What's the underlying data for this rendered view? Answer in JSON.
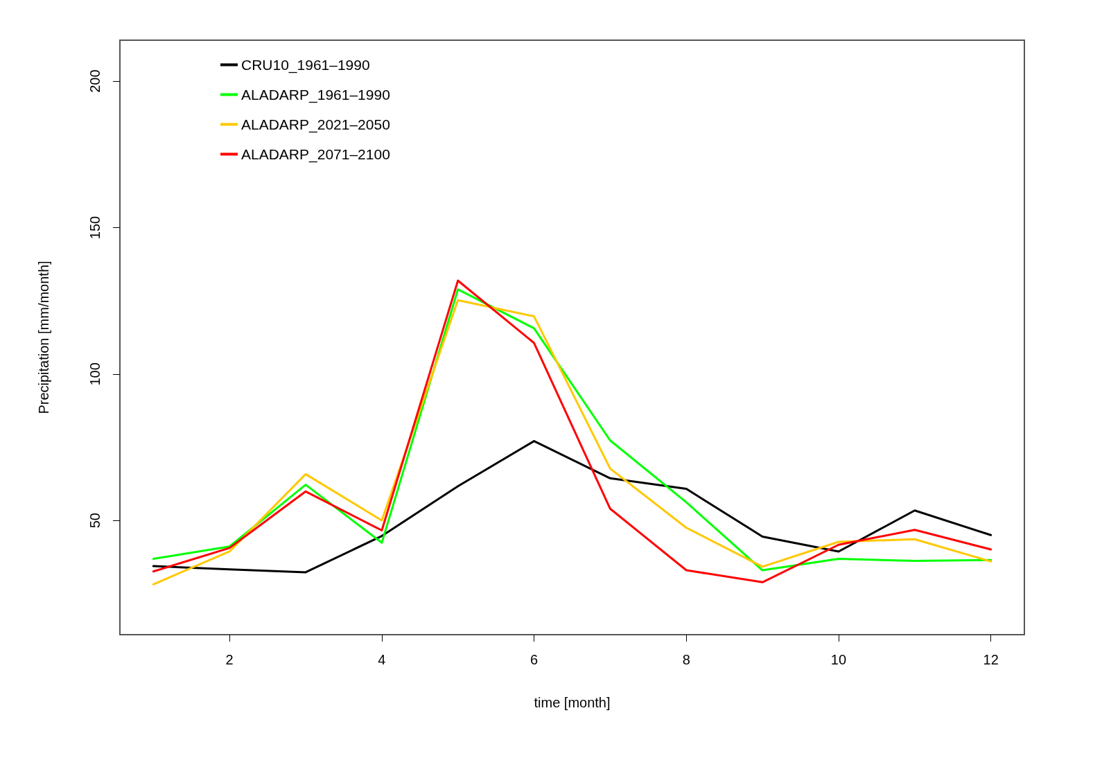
{
  "chart_data": {
    "type": "line",
    "xlabel": "time [month]",
    "ylabel": "Precipitation [mm/month]",
    "x": [
      1,
      2,
      3,
      4,
      5,
      6,
      7,
      8,
      9,
      10,
      11,
      12
    ],
    "xlim": [
      0.56,
      12.44
    ],
    "xticks": [
      2,
      4,
      6,
      8,
      10,
      12
    ],
    "ylim": [
      11,
      214
    ],
    "yticks": [
      50,
      100,
      150,
      200
    ],
    "grid": false,
    "legend": "top left",
    "marker": "none",
    "line_style": "solid",
    "series": [
      {
        "name": "CRU10_1961–1990",
        "color": "#000000",
        "values": [
          34.4,
          33.3,
          32.3,
          44.7,
          61.7,
          77.1,
          64.4,
          60.8,
          44.5,
          39.4,
          53.4,
          45.0
        ]
      },
      {
        "name": "ALADARP_1961–1990",
        "color": "#00ff00",
        "values": [
          36.9,
          41.1,
          62.2,
          42.4,
          128.9,
          115.6,
          77.3,
          56.2,
          33.0,
          36.9,
          36.2,
          36.5
        ]
      },
      {
        "name": "ALADARP_2021–2050",
        "color": "#ffc800",
        "values": [
          28.2,
          39.4,
          65.8,
          50.0,
          125.2,
          119.7,
          67.7,
          47.5,
          34.2,
          42.7,
          43.6,
          36.0
        ]
      },
      {
        "name": "ALADARP_2071–2100",
        "color": "#ff0000",
        "values": [
          32.6,
          40.6,
          59.9,
          46.6,
          131.9,
          110.6,
          54.0,
          33.0,
          28.9,
          41.7,
          46.8,
          40.1
        ]
      }
    ]
  }
}
